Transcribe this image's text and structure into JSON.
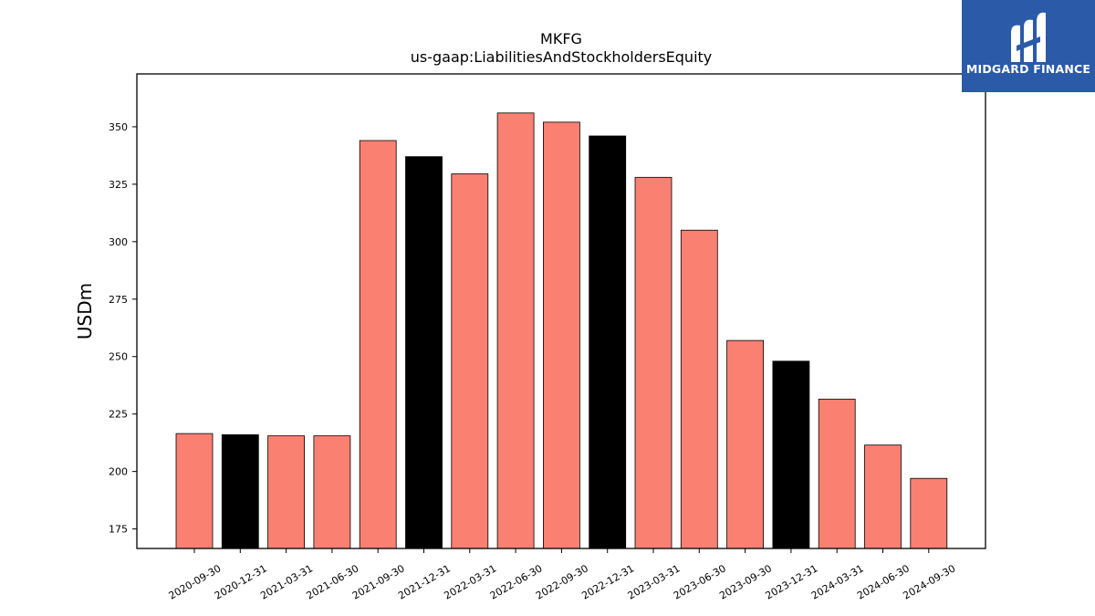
{
  "brand": {
    "name": "MIDGARD FINANCE",
    "color": "#2a5aa8"
  },
  "chart_data": {
    "type": "bar",
    "title": "MKFG",
    "subtitle": "us-gaap:LiabilitiesAndStockholdersEquity",
    "ylabel": "USDm",
    "xlabel": "",
    "ylim": [
      166.5,
      373
    ],
    "yticks": [
      175,
      200,
      225,
      250,
      275,
      300,
      325,
      350
    ],
    "grid": false,
    "colors": {
      "quarter": "#fa8072",
      "year_end": "#000000",
      "edge": "#000000"
    },
    "categories": [
      "2020-09-30",
      "2020-12-31",
      "2021-03-31",
      "2021-06-30",
      "2021-09-30",
      "2021-12-31",
      "2022-03-31",
      "2022-06-30",
      "2022-09-30",
      "2022-12-31",
      "2023-03-31",
      "2023-06-30",
      "2023-09-30",
      "2023-12-31",
      "2024-03-31",
      "2024-06-30",
      "2024-09-30"
    ],
    "values": [
      216.5,
      216.0,
      215.5,
      215.5,
      344.0,
      337.0,
      329.5,
      356.0,
      352.0,
      346.0,
      328.0,
      305.0,
      257.0,
      248.0,
      231.5,
      211.5,
      197.0
    ],
    "year_end": [
      false,
      true,
      false,
      false,
      false,
      true,
      false,
      false,
      false,
      true,
      false,
      false,
      false,
      true,
      false,
      false,
      false
    ]
  }
}
